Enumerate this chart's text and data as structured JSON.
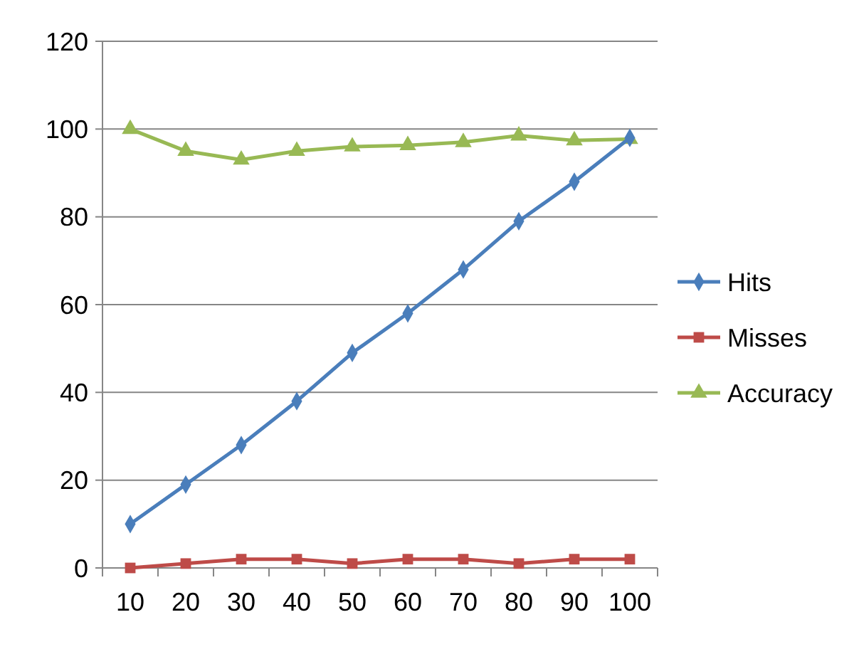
{
  "chart_data": {
    "type": "line",
    "categories": [
      "10",
      "20",
      "30",
      "40",
      "50",
      "60",
      "70",
      "80",
      "90",
      "100"
    ],
    "series": [
      {
        "name": "Hits",
        "color": "#4a7ebb",
        "marker": "diamond",
        "values": [
          10,
          19,
          28,
          38,
          49,
          58,
          68,
          79,
          88,
          98
        ]
      },
      {
        "name": "Misses",
        "color": "#be4b48",
        "marker": "square",
        "values": [
          0,
          1,
          2,
          2,
          1,
          2,
          2,
          1,
          2,
          2
        ]
      },
      {
        "name": "Accuracy",
        "color": "#98b954",
        "marker": "triangle",
        "values": [
          100,
          95,
          93,
          95,
          96,
          96.3,
          97,
          98.5,
          97.4,
          97.7
        ]
      }
    ],
    "ylim": [
      0,
      120
    ],
    "yticks": [
      0,
      20,
      40,
      60,
      80,
      100,
      120
    ],
    "grid": "y",
    "legend": "right",
    "line_style": "solid"
  }
}
